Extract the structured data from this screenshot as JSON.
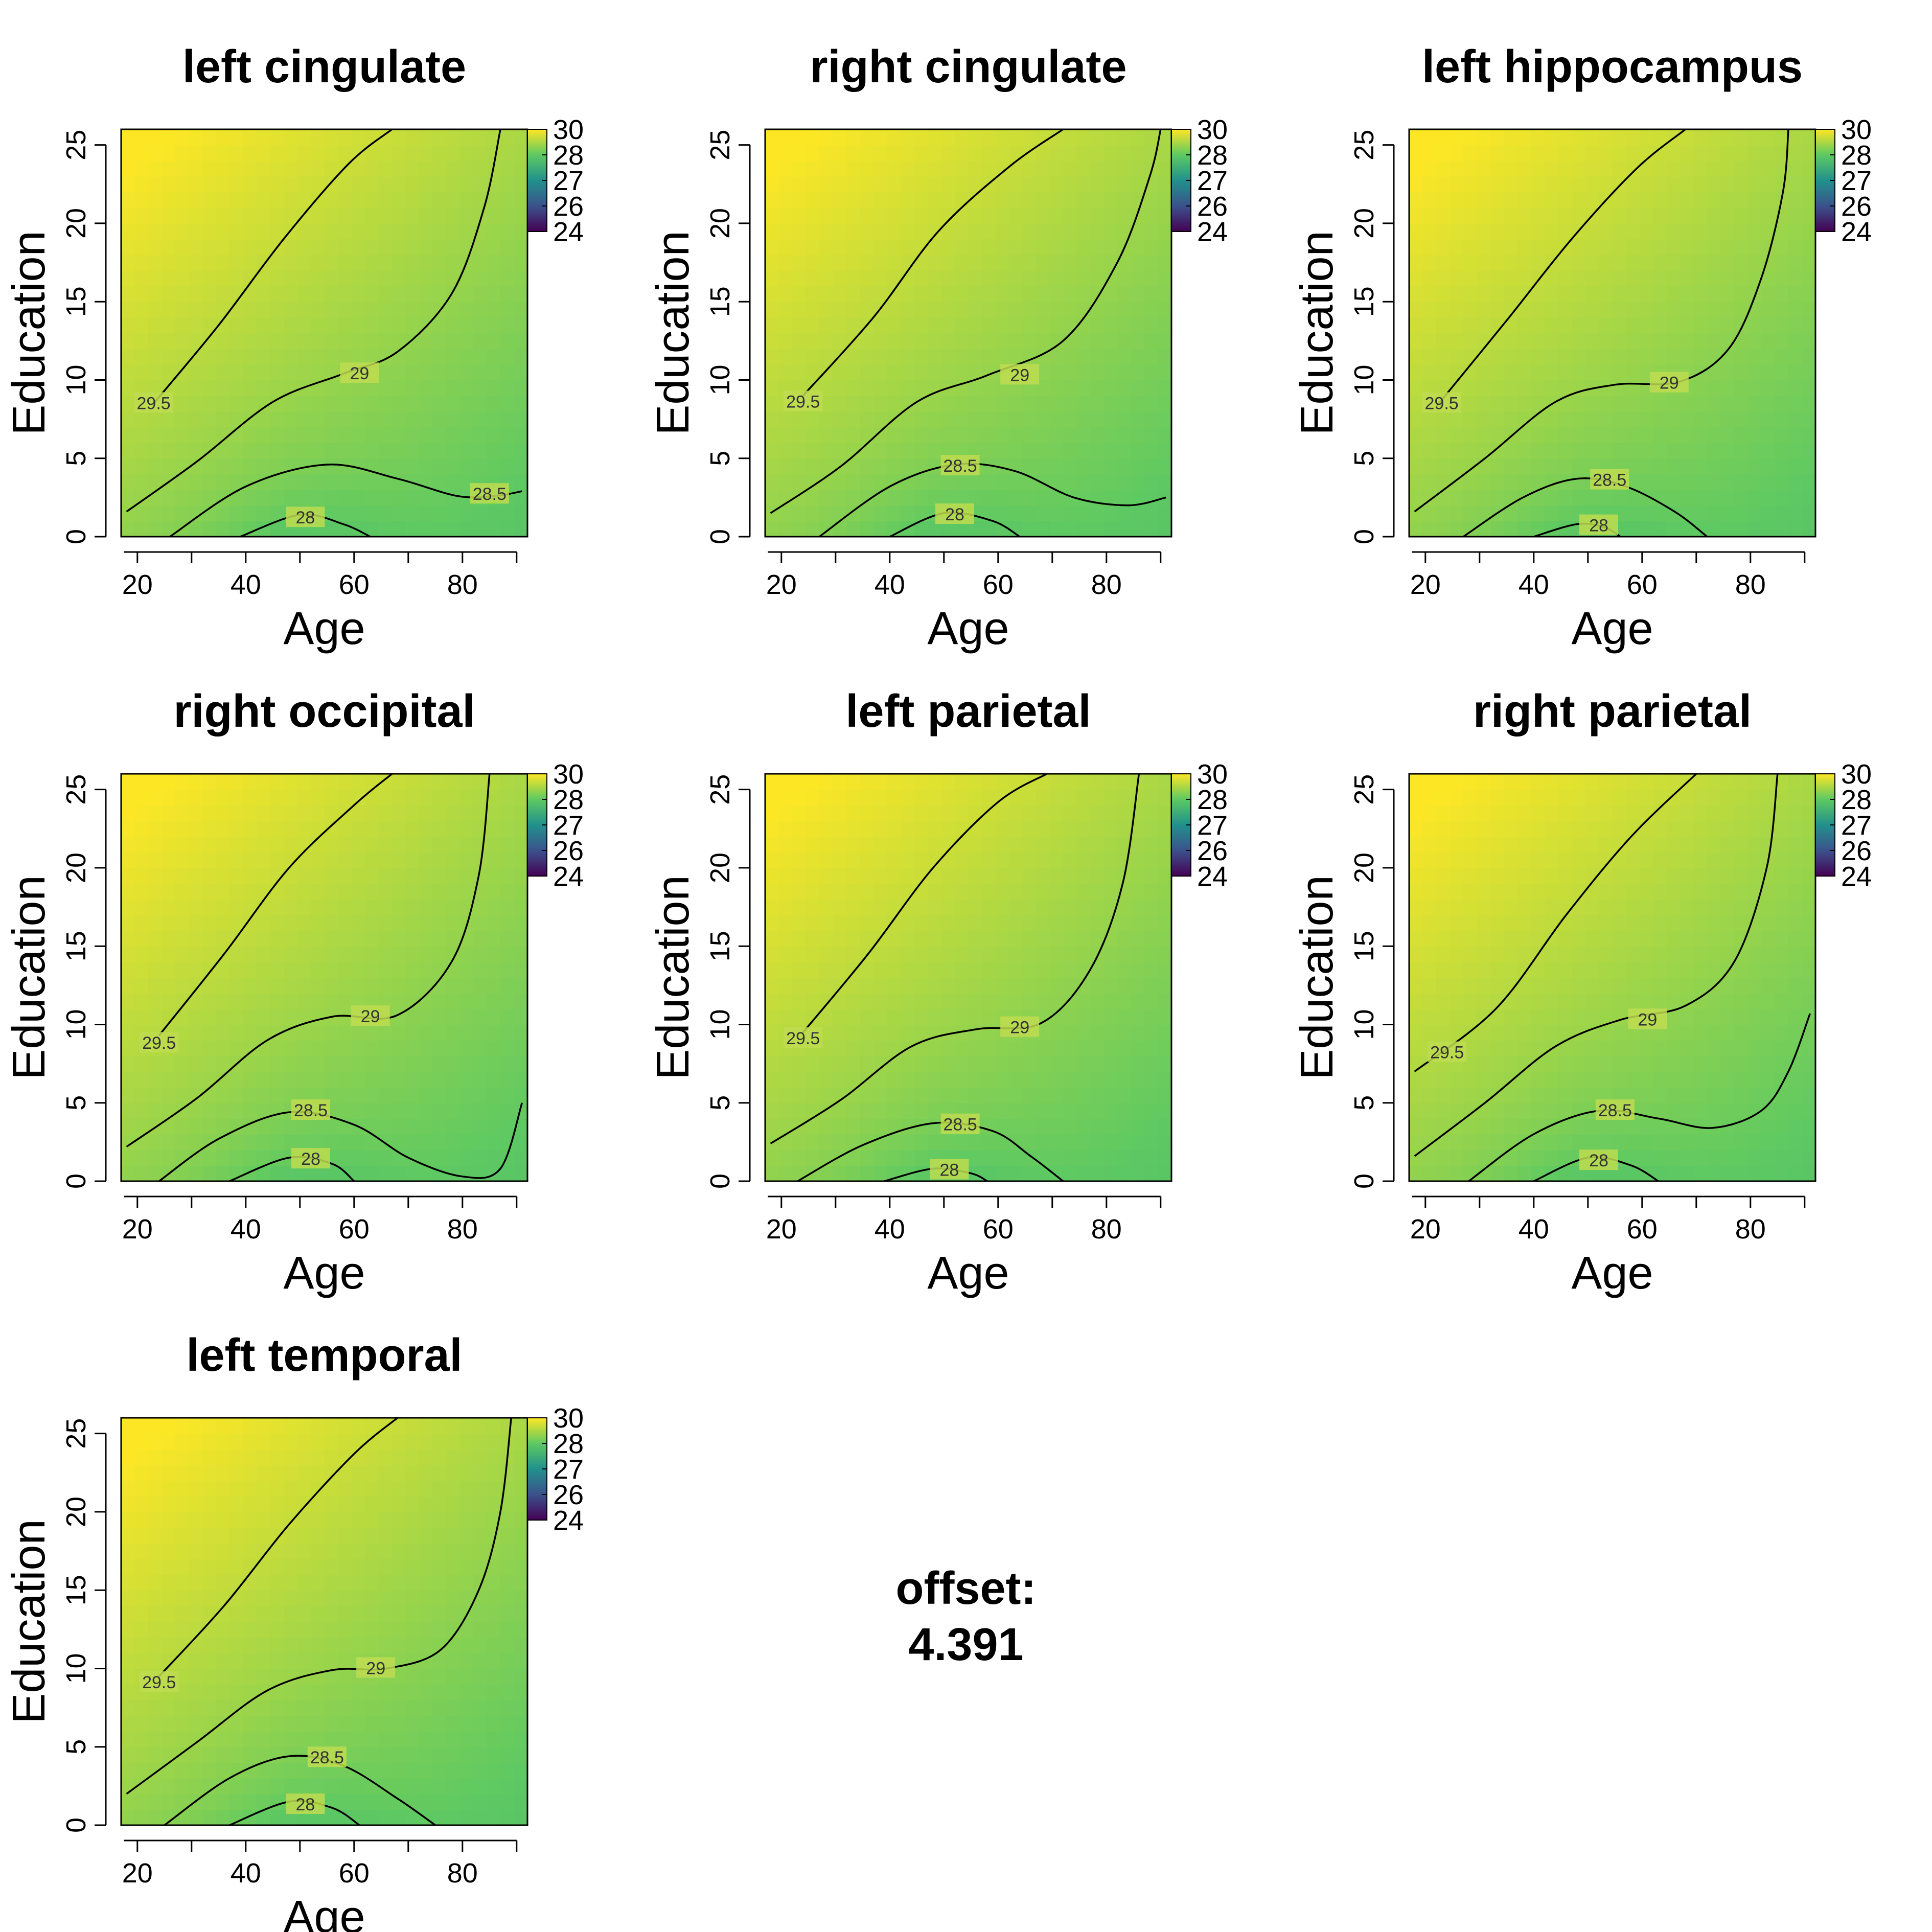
{
  "chart_data": [
    {
      "type": "heatmap",
      "title": "left cingulate",
      "xlabel": "Age",
      "ylabel": "Education",
      "xlim": [
        17,
        92
      ],
      "ylim": [
        0,
        26
      ],
      "xticks": [
        20,
        40,
        60,
        80
      ],
      "yticks": [
        0,
        5,
        10,
        15,
        20,
        25
      ],
      "colorbar": {
        "ticks": [
          "30",
          "28",
          "27",
          "26",
          "24"
        ]
      },
      "contours": [
        {
          "level": "29.5",
          "points": [
            [
              23,
              8.5
            ],
            [
              35,
              13.5
            ],
            [
              47,
              19
            ],
            [
              59,
              23.8
            ],
            [
              67,
              26
            ]
          ],
          "label_at": [
            23,
            8.5
          ]
        },
        {
          "level": "29",
          "points": [
            [
              18,
              1.6
            ],
            [
              31,
              4.8
            ],
            [
              45,
              8.6
            ],
            [
              58,
              10.4
            ],
            [
              68,
              11.8
            ],
            [
              78,
              15.5
            ],
            [
              84,
              21
            ],
            [
              87,
              26
            ]
          ],
          "label_at": [
            61,
            10.4
          ]
        },
        {
          "level": "28.5",
          "points": [
            [
              26,
              0
            ],
            [
              40,
              3.2
            ],
            [
              55,
              4.6
            ],
            [
              68,
              3.7
            ],
            [
              79,
              2.6
            ],
            [
              86,
              2.6
            ],
            [
              91,
              2.9
            ]
          ],
          "label_at": [
            85,
            2.7
          ]
        },
        {
          "level": "28",
          "points": [
            [
              39,
              0
            ],
            [
              50,
              1.4
            ],
            [
              58,
              0.8
            ],
            [
              63,
              0
            ]
          ],
          "label_at": [
            51,
            1.2
          ]
        }
      ]
    },
    {
      "type": "heatmap",
      "title": "right cingulate",
      "xlabel": "Age",
      "ylabel": "Education",
      "xlim": [
        17,
        92
      ],
      "ylim": [
        0,
        26
      ],
      "xticks": [
        20,
        40,
        60,
        80
      ],
      "yticks": [
        0,
        5,
        10,
        15,
        20,
        25
      ],
      "colorbar": {
        "ticks": [
          "30",
          "28",
          "27",
          "26",
          "24"
        ]
      },
      "contours": [
        {
          "level": "29.5",
          "points": [
            [
              24,
              9
            ],
            [
              37,
              14
            ],
            [
              49,
              19.5
            ],
            [
              62,
              23.6
            ],
            [
              72,
              26
            ]
          ],
          "label_at": [
            24,
            8.6
          ]
        },
        {
          "level": "29",
          "points": [
            [
              18,
              1.5
            ],
            [
              31,
              4.5
            ],
            [
              45,
              8.6
            ],
            [
              58,
              10.3
            ],
            [
              72,
              12.5
            ],
            [
              82,
              17.5
            ],
            [
              88,
              23
            ],
            [
              90,
              26
            ]
          ],
          "label_at": [
            64,
            10.3
          ]
        },
        {
          "level": "28.5",
          "points": [
            [
              27,
              0
            ],
            [
              40,
              3.2
            ],
            [
              52,
              4.6
            ],
            [
              63,
              4.2
            ],
            [
              74,
              2.5
            ],
            [
              84,
              2.0
            ],
            [
              91,
              2.5
            ]
          ],
          "label_at": [
            53,
            4.5
          ]
        },
        {
          "level": "28",
          "points": [
            [
              40,
              0
            ],
            [
              50,
              1.5
            ],
            [
              59,
              1.0
            ],
            [
              64,
              0
            ]
          ],
          "label_at": [
            52,
            1.4
          ]
        }
      ]
    },
    {
      "type": "heatmap",
      "title": "left hippocampus",
      "xlabel": "Age",
      "ylabel": "Education",
      "xlim": [
        17,
        92
      ],
      "ylim": [
        0,
        26
      ],
      "xticks": [
        20,
        40,
        60,
        80
      ],
      "yticks": [
        0,
        5,
        10,
        15,
        20,
        25
      ],
      "colorbar": {
        "ticks": [
          "30",
          "28",
          "27",
          "26",
          "24"
        ]
      },
      "contours": [
        {
          "level": "29.5",
          "points": [
            [
              22,
              8.3
            ],
            [
              35,
              13.8
            ],
            [
              47,
              19
            ],
            [
              59,
              23.5
            ],
            [
              68,
              26
            ]
          ],
          "label_at": [
            23,
            8.5
          ]
        },
        {
          "level": "29",
          "points": [
            [
              18,
              1.6
            ],
            [
              31,
              5
            ],
            [
              44,
              8.6
            ],
            [
              55,
              9.7
            ],
            [
              67,
              9.9
            ],
            [
              76,
              12
            ],
            [
              82,
              16.5
            ],
            [
              86,
              22
            ],
            [
              87,
              26
            ]
          ],
          "label_at": [
            65,
            9.8
          ]
        },
        {
          "level": "28.5",
          "points": [
            [
              27,
              0
            ],
            [
              38,
              2.5
            ],
            [
              48,
              3.7
            ],
            [
              57,
              3.2
            ],
            [
              66,
              1.6
            ],
            [
              72,
              0
            ]
          ],
          "label_at": [
            54,
            3.6
          ]
        },
        {
          "level": "28",
          "points": [
            [
              40,
              0
            ],
            [
              48,
              0.8
            ],
            [
              53,
              0.6
            ],
            [
              56,
              0
            ]
          ],
          "label_at": [
            52,
            0.7
          ]
        }
      ]
    },
    {
      "type": "heatmap",
      "title": "right occipital",
      "xlabel": "Age",
      "ylabel": "Education",
      "xlim": [
        17,
        92
      ],
      "ylim": [
        0,
        26
      ],
      "xticks": [
        20,
        40,
        60,
        80
      ],
      "yticks": [
        0,
        5,
        10,
        15,
        20,
        25
      ],
      "colorbar": {
        "ticks": [
          "30",
          "28",
          "27",
          "26",
          "24"
        ]
      },
      "contours": [
        {
          "level": "29.5",
          "points": [
            [
              24,
              9.3
            ],
            [
              36,
              14.5
            ],
            [
              48,
              20
            ],
            [
              60,
              24
            ],
            [
              67,
              26
            ]
          ],
          "label_at": [
            24,
            8.8
          ]
        },
        {
          "level": "29",
          "points": [
            [
              18,
              2.2
            ],
            [
              31,
              5.3
            ],
            [
              44,
              9
            ],
            [
              56,
              10.5
            ],
            [
              68,
              10.6
            ],
            [
              78,
              14
            ],
            [
              83,
              19.5
            ],
            [
              85,
              26
            ]
          ],
          "label_at": [
            63,
            10.5
          ]
        },
        {
          "level": "28.5",
          "points": [
            [
              24,
              0
            ],
            [
              35,
              2.7
            ],
            [
              48,
              4.4
            ],
            [
              60,
              3.6
            ],
            [
              70,
              1.5
            ],
            [
              80,
              0.3
            ],
            [
              87,
              0.8
            ],
            [
              91,
              5
            ]
          ],
          "label_at": [
            52,
            4.5
          ]
        },
        {
          "level": "28",
          "points": [
            [
              37,
              0
            ],
            [
              48,
              1.5
            ],
            [
              56,
              1.1
            ],
            [
              60,
              0
            ]
          ],
          "label_at": [
            52,
            1.4
          ]
        }
      ]
    },
    {
      "type": "heatmap",
      "title": "left parietal",
      "xlabel": "Age",
      "ylabel": "Education",
      "xlim": [
        17,
        92
      ],
      "ylim": [
        0,
        26
      ],
      "xticks": [
        20,
        40,
        60,
        80
      ],
      "yticks": [
        0,
        5,
        10,
        15,
        20,
        25
      ],
      "colorbar": {
        "ticks": [
          "30",
          "28",
          "27",
          "26",
          "24"
        ]
      },
      "contours": [
        {
          "level": "29.5",
          "points": [
            [
              24,
              9.5
            ],
            [
              36,
              14.5
            ],
            [
              48,
              20
            ],
            [
              60,
              24.2
            ],
            [
              69,
              26
            ]
          ],
          "label_at": [
            24,
            9.1
          ]
        },
        {
          "level": "29",
          "points": [
            [
              18,
              2.4
            ],
            [
              31,
              5.2
            ],
            [
              44,
              8.6
            ],
            [
              56,
              9.7
            ],
            [
              68,
              10.1
            ],
            [
              77,
              13.5
            ],
            [
              83,
              19
            ],
            [
              86,
              26
            ]
          ],
          "label_at": [
            64,
            9.8
          ]
        },
        {
          "level": "28.5",
          "points": [
            [
              23,
              0
            ],
            [
              35,
              2.3
            ],
            [
              48,
              3.7
            ],
            [
              59,
              3.2
            ],
            [
              66,
              1.6
            ],
            [
              72,
              0
            ]
          ],
          "label_at": [
            53,
            3.6
          ]
        },
        {
          "level": "28",
          "points": [
            [
              39,
              0
            ],
            [
              48,
              0.8
            ],
            [
              55,
              0.5
            ],
            [
              58,
              0
            ]
          ],
          "label_at": [
            51,
            0.7
          ]
        }
      ]
    },
    {
      "type": "heatmap",
      "title": "right parietal",
      "xlabel": "Age",
      "ylabel": "Education",
      "xlim": [
        17,
        92
      ],
      "ylim": [
        0,
        26
      ],
      "xticks": [
        20,
        40,
        60,
        80
      ],
      "yticks": [
        0,
        5,
        10,
        15,
        20,
        25
      ],
      "colorbar": {
        "ticks": [
          "30",
          "28",
          "27",
          "26",
          "24"
        ]
      },
      "contours": [
        {
          "level": "29.5",
          "points": [
            [
              18,
              7
            ],
            [
              33,
              11
            ],
            [
              46,
              17
            ],
            [
              58,
              22
            ],
            [
              70,
              26
            ]
          ],
          "label_at": [
            24,
            8.2
          ]
        },
        {
          "level": "29",
          "points": [
            [
              18,
              1.6
            ],
            [
              31,
              5
            ],
            [
              44,
              8.6
            ],
            [
              56,
              10.3
            ],
            [
              68,
              11.2
            ],
            [
              77,
              14
            ],
            [
              83,
              20
            ],
            [
              85,
              26
            ]
          ],
          "label_at": [
            61,
            10.3
          ]
        },
        {
          "level": "28.5",
          "points": [
            [
              28,
              0
            ],
            [
              40,
              3
            ],
            [
              52,
              4.5
            ],
            [
              63,
              4
            ],
            [
              73,
              3.4
            ],
            [
              82,
              4.5
            ],
            [
              87,
              7
            ],
            [
              91,
              10.7
            ]
          ],
          "label_at": [
            55,
            4.5
          ]
        },
        {
          "level": "28",
          "points": [
            [
              40,
              0
            ],
            [
              50,
              1.5
            ],
            [
              58,
              1.0
            ],
            [
              63,
              0
            ]
          ],
          "label_at": [
            52,
            1.3
          ]
        }
      ]
    },
    {
      "type": "heatmap",
      "title": "left temporal",
      "xlabel": "Age",
      "ylabel": "Education",
      "xlim": [
        17,
        92
      ],
      "ylim": [
        0,
        26
      ],
      "xticks": [
        20,
        40,
        60,
        80
      ],
      "yticks": [
        0,
        5,
        10,
        15,
        20,
        25
      ],
      "colorbar": {
        "ticks": [
          "30",
          "28",
          "27",
          "26",
          "24"
        ]
      },
      "contours": [
        {
          "level": "29.5",
          "points": [
            [
              24,
              9.5
            ],
            [
              36,
              14
            ],
            [
              48,
              19.2
            ],
            [
              60,
              23.7
            ],
            [
              68,
              26
            ]
          ],
          "label_at": [
            24,
            9.1
          ]
        },
        {
          "level": "29",
          "points": [
            [
              18,
              2
            ],
            [
              31,
              5.3
            ],
            [
              44,
              8.6
            ],
            [
              56,
              9.9
            ],
            [
              66,
              10
            ],
            [
              76,
              11.2
            ],
            [
              83,
              15
            ],
            [
              87,
              20
            ],
            [
              89,
              26
            ]
          ],
          "label_at": [
            64,
            10
          ]
        },
        {
          "level": "28.5",
          "points": [
            [
              25,
              0
            ],
            [
              37,
              3
            ],
            [
              48,
              4.4
            ],
            [
              58,
              3.8
            ],
            [
              68,
              1.7
            ],
            [
              75,
              0
            ]
          ],
          "label_at": [
            55,
            4.3
          ]
        },
        {
          "level": "28",
          "points": [
            [
              37,
              0
            ],
            [
              48,
              1.5
            ],
            [
              56,
              1.1
            ],
            [
              61,
              0
            ]
          ],
          "label_at": [
            51,
            1.3
          ]
        }
      ]
    }
  ],
  "offset": {
    "label": "offset:",
    "value": "4.391"
  }
}
